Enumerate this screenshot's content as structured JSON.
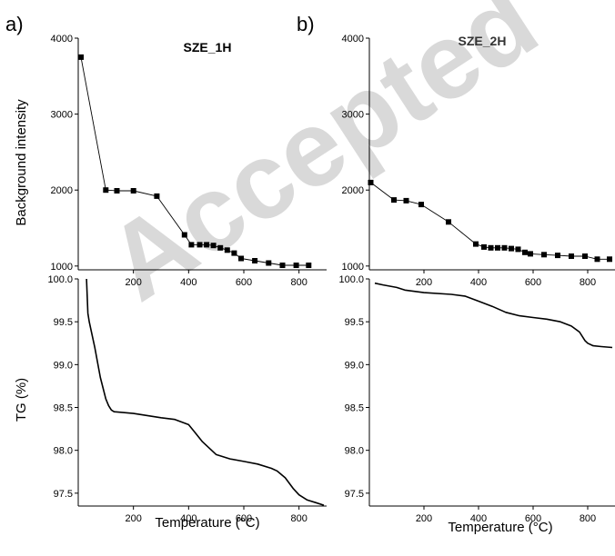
{
  "figure": {
    "panel_labels": [
      "a)",
      "b)"
    ],
    "watermark": "Accepted",
    "x_axis_label": "Temperature (°C)",
    "top_y_label": "Background intensity",
    "bottom_y_label": "TG (%)",
    "titles": [
      "SZE_1H",
      "SZE_2H"
    ]
  },
  "chart_data": [
    {
      "id": "a-top",
      "type": "line",
      "title": "SZE_1H",
      "ylabel": "Background intensity",
      "xlabel": "",
      "xlim": [
        0,
        900
      ],
      "ylim": [
        950,
        4000
      ],
      "yticks": [
        1000,
        2000,
        3000,
        4000
      ],
      "xticks": [
        200,
        400,
        600,
        800
      ],
      "xtick_labels": true,
      "marker": "square",
      "series": [
        {
          "x": [
            10,
            100,
            140,
            200,
            285,
            385,
            410,
            440,
            465,
            490,
            515,
            540,
            565,
            590,
            640,
            690,
            740,
            790,
            835
          ],
          "y": [
            3750,
            2000,
            1990,
            1990,
            1920,
            1410,
            1280,
            1280,
            1280,
            1270,
            1240,
            1210,
            1170,
            1100,
            1070,
            1040,
            1010,
            1010,
            1010
          ]
        }
      ]
    },
    {
      "id": "b-top",
      "type": "line",
      "title": "SZE_2H",
      "ylabel": "",
      "xlabel": "",
      "xlim": [
        0,
        900
      ],
      "ylim": [
        950,
        4000
      ],
      "yticks": [
        1000,
        2000,
        3000,
        4000
      ],
      "xticks": [
        200,
        400,
        600,
        800
      ],
      "xtick_labels": true,
      "marker": "square",
      "series": [
        {
          "x": [
            5,
            90,
            135,
            190,
            290,
            390,
            420,
            445,
            470,
            495,
            520,
            545,
            570,
            590,
            640,
            690,
            740,
            790,
            835,
            880
          ],
          "y": [
            2100,
            1870,
            1860,
            1810,
            1580,
            1290,
            1250,
            1240,
            1240,
            1240,
            1230,
            1220,
            1180,
            1160,
            1150,
            1140,
            1130,
            1130,
            1090,
            1090
          ]
        }
      ]
    },
    {
      "id": "a-bottom",
      "type": "line",
      "title": "",
      "ylabel": "TG (%)",
      "xlabel": "Temperature (°C)",
      "xlim": [
        0,
        900
      ],
      "ylim": [
        97.35,
        100.0
      ],
      "yticks": [
        97.5,
        98.0,
        98.5,
        99.0,
        99.5,
        100.0
      ],
      "xticks": [
        200,
        400,
        600,
        800
      ],
      "xtick_labels": true,
      "marker": "none",
      "series": [
        {
          "x": [
            30,
            35,
            40,
            60,
            80,
            100,
            110,
            120,
            130,
            200,
            300,
            350,
            400,
            420,
            450,
            500,
            550,
            600,
            650,
            700,
            720,
            750,
            780,
            800,
            830,
            860,
            890
          ],
          "y": [
            100.0,
            99.6,
            99.5,
            99.2,
            98.85,
            98.6,
            98.52,
            98.47,
            98.45,
            98.43,
            98.38,
            98.36,
            98.3,
            98.22,
            98.1,
            97.95,
            97.9,
            97.87,
            97.84,
            97.79,
            97.76,
            97.68,
            97.55,
            97.48,
            97.42,
            97.39,
            97.36
          ]
        }
      ]
    },
    {
      "id": "b-bottom",
      "type": "line",
      "title": "",
      "ylabel": "",
      "xlabel": "Temperature (°C)",
      "xlim": [
        0,
        900
      ],
      "ylim": [
        97.35,
        100.0
      ],
      "yticks": [
        97.5,
        98.0,
        98.5,
        99.0,
        99.5,
        100.0
      ],
      "xticks": [
        200,
        400,
        600,
        800
      ],
      "xtick_labels": true,
      "marker": "none",
      "series": [
        {
          "x": [
            20,
            50,
            100,
            130,
            200,
            300,
            350,
            400,
            450,
            500,
            550,
            600,
            650,
            700,
            740,
            770,
            790,
            800,
            820,
            850,
            890
          ],
          "y": [
            99.95,
            99.93,
            99.9,
            99.87,
            99.84,
            99.82,
            99.8,
            99.74,
            99.68,
            99.61,
            99.57,
            99.55,
            99.53,
            99.5,
            99.45,
            99.38,
            99.28,
            99.25,
            99.22,
            99.21,
            99.2
          ]
        }
      ]
    }
  ]
}
